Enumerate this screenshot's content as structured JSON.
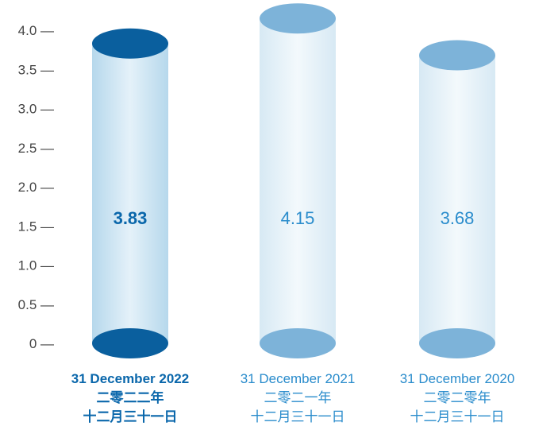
{
  "chart_data": {
    "type": "bar",
    "title": "",
    "xlabel": "",
    "ylabel": "",
    "ylim": [
      0,
      4.0
    ],
    "yticks": [
      {
        "value": 0,
        "label": "0 —"
      },
      {
        "value": 0.5,
        "label": "0.5 —"
      },
      {
        "value": 1.0,
        "label": "1.0 —"
      },
      {
        "value": 1.5,
        "label": "1.5 —"
      },
      {
        "value": 2.0,
        "label": "2.0 —"
      },
      {
        "value": 2.5,
        "label": "2.5 —"
      },
      {
        "value": 3.0,
        "label": "3.0 —"
      },
      {
        "value": 3.5,
        "label": "3.5 —"
      },
      {
        "value": 4.0,
        "label": "4.0 —"
      }
    ],
    "categories": [
      {
        "line1": "31 December 2022",
        "line2": "二零二二年",
        "line3": "十二月三十一日"
      },
      {
        "line1": "31 December 2021",
        "line2": "二零二一年",
        "line3": "十二月三十一日"
      },
      {
        "line1": "31 December 2020",
        "line2": "二零二零年",
        "line3": "十二月三十一日"
      }
    ],
    "values": [
      3.83,
      4.15,
      3.68
    ],
    "value_labels": [
      "3.83",
      "4.15",
      "3.68"
    ],
    "highlight_index": 0,
    "colors": {
      "highlight": "#0a67ab",
      "highlight_ellipse": "#0a5f9e",
      "normal": "#2a8ccc",
      "normal_ellipse": "#7db3d9",
      "axis_text": "#444444"
    }
  }
}
